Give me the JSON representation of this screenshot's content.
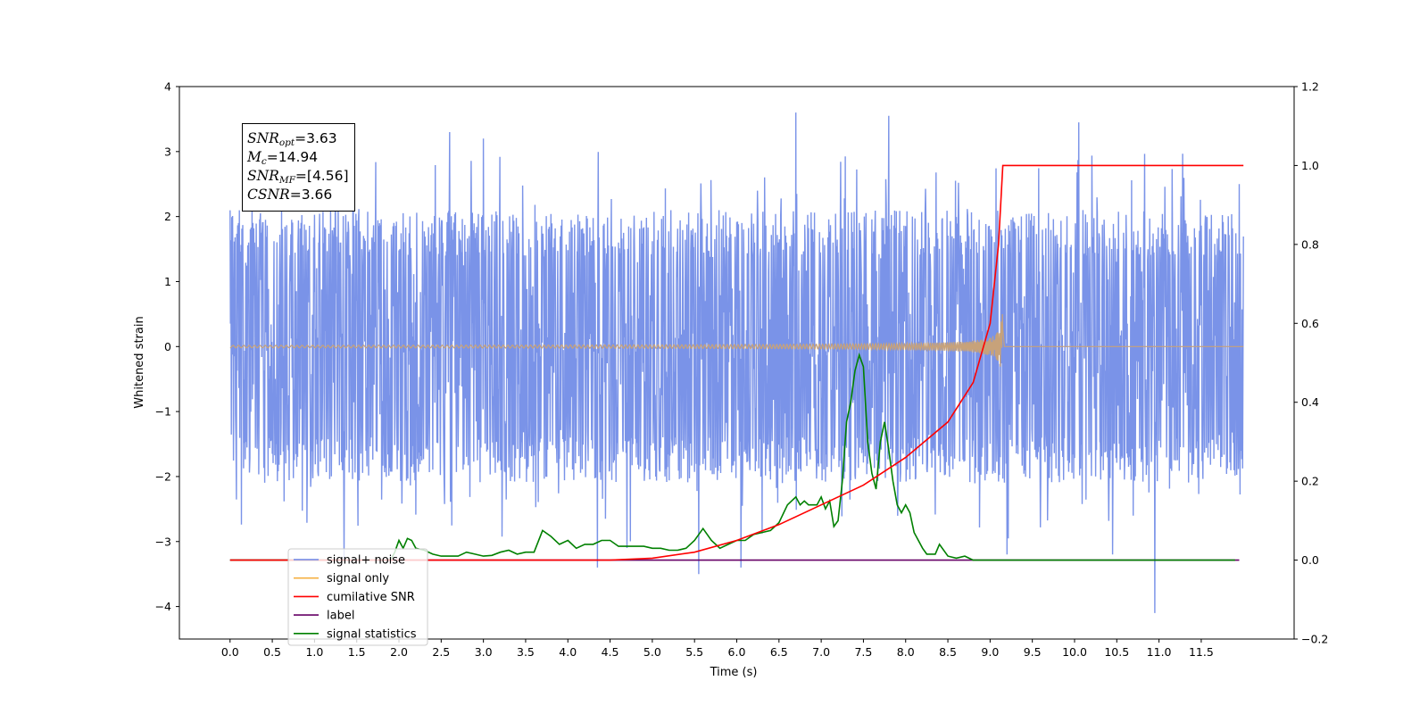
{
  "colors": {
    "signal_noise": "#6b87e6",
    "signal_only": "#f5b041",
    "signal_overlap": "#c7a27a",
    "cumulative_snr": "#ff0000",
    "label": "#660066",
    "signal_statistics": "#008000"
  },
  "annotation": {
    "snr_opt_symbol": "SNR",
    "snr_opt_sub": "opt",
    "snr_opt_value": "=3.63",
    "mc_symbol": "M",
    "mc_sub": "c",
    "mc_value": "=14.94",
    "snr_mf_symbol": "SNR",
    "snr_mf_sub": "MF",
    "snr_mf_value": "=[4.56]",
    "csnr_symbol": "CSNR",
    "csnr_value": "=3.66"
  },
  "chart_data": {
    "type": "line",
    "xlabel": "Time (s)",
    "ylabel": "Whitened strain",
    "xlim": [
      -0.6,
      12.6
    ],
    "ylim": [
      -4.5,
      4.0
    ],
    "y2lim": [
      -0.2,
      1.2
    ],
    "x_ticks": [
      "0.0",
      "0.5",
      "1.0",
      "1.5",
      "2.0",
      "2.5",
      "3.0",
      "3.5",
      "4.0",
      "4.5",
      "5.0",
      "5.5",
      "6.0",
      "6.5",
      "7.0",
      "7.5",
      "8.0",
      "8.5",
      "9.0",
      "9.5",
      "10.0",
      "10.5",
      "11.0",
      "11.5"
    ],
    "x_tick_values": [
      0.0,
      0.5,
      1.0,
      1.5,
      2.0,
      2.5,
      3.0,
      3.5,
      4.0,
      4.5,
      5.0,
      5.5,
      6.0,
      6.5,
      7.0,
      7.5,
      8.0,
      8.5,
      9.0,
      9.5,
      10.0,
      10.5,
      11.0,
      11.5
    ],
    "y_ticks": [
      "4",
      "3",
      "2",
      "1",
      "0",
      "−1",
      "−2",
      "−3",
      "−4"
    ],
    "y_tick_values": [
      4,
      3,
      2,
      1,
      0,
      -1,
      -2,
      -3,
      -4
    ],
    "y2_ticks": [
      "1.2",
      "1.0",
      "0.8",
      "0.6",
      "0.4",
      "0.2",
      "0.0",
      "−0.2"
    ],
    "y2_tick_values": [
      1.2,
      1.0,
      0.8,
      0.6,
      0.4,
      0.2,
      0.0,
      -0.2
    ],
    "legend_position": "lower-left",
    "series": [
      {
        "name": "signal+ noise",
        "axis": "left",
        "description_points": "noisy strain, 0 to 12 s, envelope roughly ±2 with spikes",
        "x_range": [
          0.0,
          12.0
        ],
        "envelope": [
          -2.1,
          2.1
        ],
        "spikes": [
          [
            0.1,
            1.9
          ],
          [
            1.35,
            -3.3
          ],
          [
            2.6,
            3.3
          ],
          [
            3.0,
            3.2
          ],
          [
            4.35,
            -3.4
          ],
          [
            4.7,
            -3.1
          ],
          [
            5.55,
            -3.5
          ],
          [
            6.05,
            -3.4
          ],
          [
            6.7,
            3.6
          ],
          [
            7.8,
            3.55
          ],
          [
            9.2,
            -3.2
          ],
          [
            10.05,
            3.45
          ],
          [
            10.95,
            -4.1
          ],
          [
            10.45,
            -3.2
          ],
          [
            11.95,
            2.5
          ]
        ]
      },
      {
        "name": "signal only",
        "axis": "left",
        "chirp_end_time": 9.15,
        "peak_amplitude": 0.65
      },
      {
        "name": "cumilative SNR",
        "axis": "right",
        "x": [
          0.0,
          4.5,
          5.0,
          5.5,
          6.0,
          6.5,
          7.0,
          7.5,
          8.0,
          8.5,
          8.8,
          9.0,
          9.1,
          9.15,
          9.5,
          10.0,
          11.0,
          12.0
        ],
        "values": [
          0.0,
          0.0,
          0.005,
          0.02,
          0.05,
          0.09,
          0.14,
          0.19,
          0.26,
          0.35,
          0.45,
          0.6,
          0.8,
          1.0,
          1.0,
          1.0,
          1.0,
          1.0
        ]
      },
      {
        "name": "label",
        "axis": "right",
        "x": [
          0.0,
          11.95
        ],
        "values": [
          0.0,
          0.0
        ]
      },
      {
        "name": "signal statistics",
        "axis": "right",
        "x": [
          0.0,
          1.9,
          1.95,
          2.0,
          2.05,
          2.1,
          2.15,
          2.2,
          2.3,
          2.4,
          2.5,
          2.6,
          2.7,
          2.8,
          2.9,
          3.0,
          3.1,
          3.2,
          3.3,
          3.4,
          3.5,
          3.6,
          3.7,
          3.8,
          3.9,
          4.0,
          4.1,
          4.2,
          4.3,
          4.4,
          4.5,
          4.6,
          4.7,
          4.8,
          4.9,
          5.0,
          5.1,
          5.2,
          5.3,
          5.4,
          5.5,
          5.6,
          5.7,
          5.8,
          5.9,
          6.0,
          6.1,
          6.2,
          6.3,
          6.4,
          6.5,
          6.6,
          6.7,
          6.75,
          6.8,
          6.85,
          6.9,
          6.95,
          7.0,
          7.05,
          7.1,
          7.15,
          7.2,
          7.25,
          7.3,
          7.35,
          7.4,
          7.45,
          7.5,
          7.55,
          7.6,
          7.65,
          7.7,
          7.75,
          7.8,
          7.85,
          7.9,
          7.95,
          8.0,
          8.05,
          8.1,
          8.2,
          8.25,
          8.35,
          8.4,
          8.5,
          8.6,
          8.7,
          8.8,
          9.0,
          9.5,
          10.0,
          10.5,
          11.0,
          11.9
        ],
        "values": [
          0.0,
          0.0,
          0.02,
          0.05,
          0.03,
          0.055,
          0.05,
          0.03,
          0.025,
          0.015,
          0.01,
          0.01,
          0.01,
          0.02,
          0.015,
          0.01,
          0.012,
          0.02,
          0.025,
          0.015,
          0.02,
          0.02,
          0.075,
          0.06,
          0.04,
          0.05,
          0.03,
          0.04,
          0.04,
          0.05,
          0.05,
          0.035,
          0.035,
          0.035,
          0.035,
          0.03,
          0.03,
          0.025,
          0.025,
          0.03,
          0.05,
          0.08,
          0.05,
          0.03,
          0.04,
          0.05,
          0.05,
          0.065,
          0.07,
          0.075,
          0.095,
          0.14,
          0.16,
          0.14,
          0.15,
          0.14,
          0.14,
          0.14,
          0.16,
          0.13,
          0.15,
          0.085,
          0.1,
          0.2,
          0.35,
          0.4,
          0.48,
          0.52,
          0.49,
          0.3,
          0.22,
          0.18,
          0.3,
          0.35,
          0.28,
          0.2,
          0.14,
          0.12,
          0.14,
          0.12,
          0.07,
          0.03,
          0.015,
          0.015,
          0.04,
          0.01,
          0.005,
          0.01,
          0.0,
          0.0,
          0.0,
          0.0,
          0.0,
          0.0,
          0.0
        ]
      }
    ],
    "legend_labels": [
      "signal+ noise",
      "signal only",
      "cumilative SNR",
      "label",
      "signal statistics"
    ]
  }
}
